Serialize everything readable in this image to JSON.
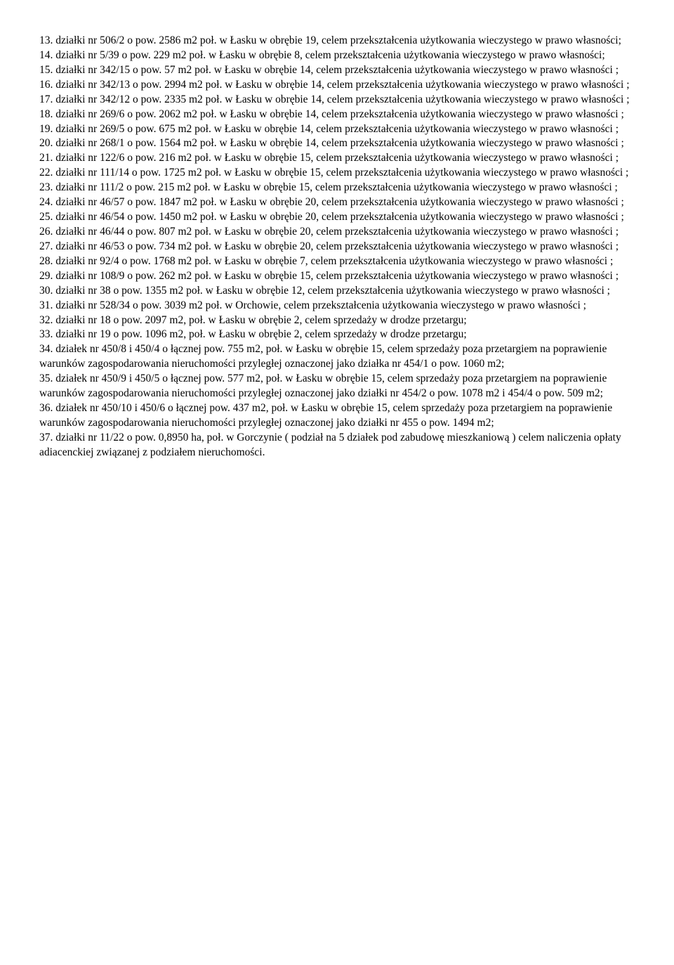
{
  "entries": [
    "13. działki nr 506/2 o pow. 2586 m2 poł. w Łasku w obrębie 19, celem przekształcenia użytkowania wieczystego w prawo własności;",
    "14. działki nr 5/39 o pow. 229 m2 poł. w Łasku w obrębie 8, celem przekształcenia użytkowania wieczystego w prawo własności;",
    "15. działki nr 342/15 o pow. 57 m2 poł. w Łasku w obrębie 14, celem przekształcenia użytkowania wieczystego w prawo własności ;",
    "16. działki nr 342/13 o pow. 2994 m2 poł. w Łasku w obrębie 14, celem przekształcenia użytkowania wieczystego w prawo własności ;",
    "17. działki nr 342/12 o pow. 2335 m2 poł. w Łasku w obrębie 14, celem przekształcenia użytkowania wieczystego w prawo własności ;",
    "18. działki nr 269/6 o pow. 2062 m2 poł. w Łasku w obrębie 14, celem przekształcenia użytkowania wieczystego w prawo własności ;",
    "19. działki nr 269/5 o pow. 675 m2 poł. w Łasku w obrębie 14, celem przekształcenia użytkowania wieczystego w prawo własności ;",
    "20. działki nr 268/1 o pow. 1564 m2 poł. w Łasku w obrębie 14, celem przekształcenia użytkowania wieczystego w prawo własności ;",
    "21. działki nr 122/6 o pow. 216 m2 poł. w Łasku w obrębie 15, celem przekształcenia użytkowania wieczystego w prawo własności ;",
    "22. działki nr 111/14 o pow. 1725 m2 poł. w Łasku w obrębie 15, celem przekształcenia użytkowania wieczystego w prawo własności ;",
    "23. działki nr 111/2 o pow. 215 m2 poł. w Łasku w obrębie 15, celem przekształcenia użytkowania wieczystego w prawo własności ;",
    "24. działki nr 46/57 o pow. 1847 m2 poł. w Łasku w obrębie 20, celem przekształcenia użytkowania wieczystego w prawo własności ;",
    "25. działki nr 46/54 o pow. 1450 m2 poł. w Łasku w obrębie 20, celem przekształcenia użytkowania wieczystego w prawo własności ;",
    "26. działki nr 46/44 o pow. 807 m2 poł. w Łasku w obrębie 20, celem przekształcenia użytkowania wieczystego w prawo własności ;",
    "27. działki nr 46/53 o pow. 734 m2 poł. w Łasku w obrębie 20, celem przekształcenia użytkowania wieczystego w prawo własności ;",
    "28. działki nr 92/4 o pow. 1768 m2 poł. w Łasku w obrębie 7, celem przekształcenia użytkowania wieczystego w prawo własności ;",
    "29. działki nr 108/9 o pow. 262 m2 poł. w Łasku w obrębie 15, celem przekształcenia użytkowania wieczystego w prawo własności ;",
    "30. działki nr 38 o pow. 1355 m2 poł. w Łasku w obrębie 12, celem przekształcenia użytkowania wieczystego w prawo własności ;",
    "31. działki nr 528/34 o pow. 3039 m2 poł. w Orchowie, celem przekształcenia użytkowania wieczystego w prawo własności ;",
    "32. działki nr 18 o pow. 2097 m2, poł. w Łasku w obrębie 2, celem sprzedaży w drodze przetargu;",
    "33. działki nr 19 o pow. 1096 m2, poł. w Łasku w obrębie 2, celem sprzedaży w drodze przetargu;",
    "34. działek nr 450/8 i 450/4 o łącznej pow. 755 m2, poł. w Łasku w obrębie 15, celem sprzedaży poza przetargiem na poprawienie warunków zagospodarowania nieruchomości przyległej oznaczonej jako działka nr 454/1 o pow. 1060 m2;",
    "35. działek nr 450/9 i 450/5 o łącznej pow. 577 m2, poł. w Łasku w obrębie 15, celem sprzedaży poza przetargiem  na poprawienie warunków zagospodarowania nieruchomości przyległej oznaczonej jako działki nr 454/2 o pow. 1078 m2 i 454/4 o pow. 509  m2;",
    "36. działek nr 450/10 i 450/6 o łącznej pow. 437 m2, poł. w Łasku w obrębie 15, celem sprzedaży poza przetargiem na poprawienie warunków zagospodarowania nieruchomości przyległej oznaczonej jako działki nr 455 o pow. 1494  m2;",
    "37. działki nr 11/22 o pow. 0,8950 ha, poł. w Gorczynie ( podział na 5 działek pod zabudowę mieszkaniową ) celem naliczenia opłaty adiacenckiej związanej z podziałem nieruchomości."
  ]
}
